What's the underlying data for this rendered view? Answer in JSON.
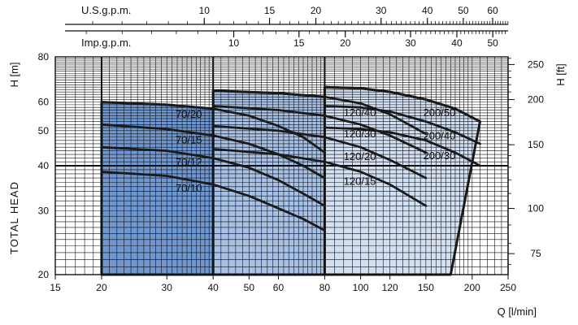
{
  "chart_data": {
    "type": "line",
    "title": "",
    "xlabel": "Q [l/min]",
    "ylabel": "TOTAL HEAD",
    "ylabel_left_units": "H [m]",
    "ylabel_right_units": "H [ft]",
    "x_scale": "log",
    "y_scale": "log",
    "xlim": [
      15,
      250
    ],
    "ylim": [
      20,
      80
    ],
    "grid": true,
    "x_ticks": [
      15,
      20,
      30,
      40,
      50,
      60,
      80,
      100,
      120,
      150,
      200,
      250
    ],
    "y_ticks_m": [
      20,
      30,
      40,
      50,
      60,
      80
    ],
    "y_ticks_ft": [
      75,
      100,
      150,
      200,
      250
    ],
    "top_axis_us": {
      "label": "U.S.g.p.m.",
      "ticks": [
        10,
        15,
        20,
        30,
        40,
        50,
        60
      ]
    },
    "top_axis_imp": {
      "label": "Imp.g.p.m.",
      "ticks": [
        10,
        15,
        20,
        30,
        40,
        50
      ]
    },
    "families": [
      {
        "color": "#6f97d0",
        "x_range": [
          20,
          80
        ],
        "low_edge_q_at_20m": 77
      },
      {
        "color": "#a7c1e6",
        "x_range": [
          40,
          150
        ],
        "low_edge_q_at_20m": 140
      },
      {
        "color": "#d3e0f2",
        "x_range": [
          80,
          210
        ],
        "low_edge_q_at_20m": 175
      }
    ],
    "series": [
      {
        "name": "70/20",
        "x": [
          20,
          30,
          40,
          50,
          60,
          70,
          80
        ],
        "y": [
          60,
          59,
          57.5,
          55,
          51.5,
          48,
          43.5
        ]
      },
      {
        "name": "70/15",
        "x": [
          20,
          30,
          40,
          50,
          60,
          70,
          80
        ],
        "y": [
          52,
          50.5,
          48.5,
          46,
          43,
          40,
          37
        ]
      },
      {
        "name": "70/12",
        "x": [
          20,
          30,
          40,
          50,
          60,
          70,
          80
        ],
        "y": [
          45,
          44,
          42,
          39.5,
          36.5,
          33.5,
          31
        ]
      },
      {
        "name": "70/10",
        "x": [
          20,
          30,
          40,
          50,
          60,
          70,
          80
        ],
        "y": [
          38.5,
          37.5,
          35.5,
          33,
          30.5,
          28.5,
          26.5
        ]
      },
      {
        "name": "120/40",
        "x": [
          40,
          60,
          80,
          100,
          120,
          150
        ],
        "y": [
          64.5,
          63.5,
          62,
          59.5,
          55.5,
          49
        ]
      },
      {
        "name": "120/30",
        "x": [
          40,
          60,
          80,
          100,
          120,
          150
        ],
        "y": [
          58.5,
          57,
          55,
          52,
          48.5,
          43.5
        ]
      },
      {
        "name": "120/20",
        "x": [
          40,
          60,
          80,
          100,
          120,
          150
        ],
        "y": [
          51.5,
          50,
          48,
          45,
          41.5,
          37
        ]
      },
      {
        "name": "120/15",
        "x": [
          40,
          60,
          80,
          100,
          120,
          150
        ],
        "y": [
          44.5,
          43,
          41,
          38.5,
          35.5,
          31
        ]
      },
      {
        "name": "200/50",
        "x": [
          80,
          100,
          120,
          150,
          180,
          210
        ],
        "y": [
          66,
          65.5,
          64,
          61,
          57.5,
          53
        ]
      },
      {
        "name": "200/40",
        "x": [
          80,
          100,
          120,
          150,
          180,
          210
        ],
        "y": [
          58.5,
          58,
          56.5,
          53,
          49.5,
          46
        ]
      },
      {
        "name": "200/30",
        "x": [
          80,
          100,
          120,
          150,
          180,
          210
        ],
        "y": [
          51,
          50.5,
          49.5,
          47,
          43.5,
          40
        ]
      }
    ]
  }
}
